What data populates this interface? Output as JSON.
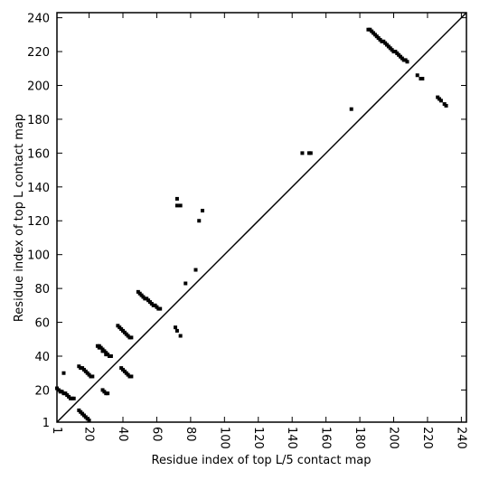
{
  "chart_data": {
    "type": "scatter",
    "xlabel": "Residue index of top L/5 contact map",
    "ylabel": "Residue index of top L contact map",
    "x": [
      1,
      2,
      3,
      4,
      5,
      6,
      7,
      8,
      9,
      10,
      11,
      5,
      14,
      15,
      16,
      17,
      18,
      19,
      20,
      21,
      22,
      14,
      15,
      16,
      17,
      18,
      19,
      20,
      25,
      26,
      26,
      27,
      28,
      28,
      29,
      30,
      30,
      31,
      32,
      33,
      28,
      29,
      30,
      31,
      37,
      38,
      39,
      40,
      41,
      42,
      43,
      44,
      45,
      39,
      40,
      41,
      42,
      43,
      44,
      45,
      49,
      50,
      51,
      52,
      53,
      54,
      55,
      56,
      57,
      58,
      59,
      60,
      61,
      62,
      71,
      72,
      74,
      72,
      72,
      74,
      77,
      83,
      85,
      87,
      146,
      150,
      151,
      175,
      185,
      186,
      187,
      188,
      189,
      190,
      191,
      192,
      193,
      194,
      195,
      196,
      197,
      198,
      199,
      200,
      201,
      202,
      203,
      204,
      205,
      206,
      207,
      208,
      214,
      216,
      217,
      226,
      227,
      228,
      230,
      231
    ],
    "y": [
      21,
      20,
      19,
      19,
      18,
      18,
      17,
      16,
      15,
      15,
      15,
      30,
      34,
      33,
      33,
      32,
      31,
      30,
      29,
      28,
      28,
      8,
      7,
      6,
      5,
      4,
      3,
      2,
      46,
      46,
      45,
      45,
      44,
      43,
      43,
      42,
      41,
      41,
      40,
      40,
      20,
      19,
      18,
      18,
      58,
      57,
      56,
      55,
      54,
      53,
      52,
      51,
      51,
      33,
      32,
      31,
      30,
      29,
      28,
      28,
      78,
      77,
      76,
      75,
      74,
      74,
      73,
      72,
      71,
      70,
      70,
      69,
      68,
      68,
      57,
      55,
      52,
      133,
      129,
      129,
      83,
      91,
      120,
      126,
      160,
      160,
      160,
      186,
      233,
      233,
      232,
      231,
      230,
      229,
      228,
      227,
      226,
      226,
      225,
      224,
      223,
      222,
      221,
      220,
      220,
      219,
      218,
      217,
      216,
      215,
      215,
      214,
      206,
      204,
      204,
      193,
      192,
      191,
      189,
      188
    ],
    "color": "#000000",
    "diagonal": true,
    "xlim": [
      1,
      243
    ],
    "ylim": [
      1,
      243
    ],
    "xticks": [
      1,
      20,
      40,
      60,
      80,
      100,
      120,
      140,
      160,
      180,
      200,
      220,
      240
    ],
    "yticks": [
      1,
      20,
      40,
      60,
      80,
      100,
      120,
      140,
      160,
      180,
      200,
      220,
      240
    ]
  }
}
